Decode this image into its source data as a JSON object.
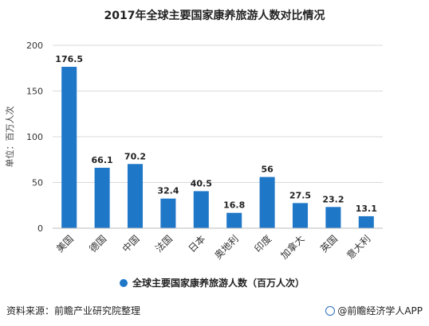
{
  "chart_data": {
    "type": "bar",
    "title": "2017年全球主要国家康养旅游人数对比情况",
    "ylabel": "单位：百万人次",
    "xlabel": "",
    "categories": [
      "美国",
      "德国",
      "中国",
      "法国",
      "日本",
      "奥地利",
      "印度",
      "加拿大",
      "英国",
      "意大利"
    ],
    "series": [
      {
        "name": "全球主要国家康养旅游人数（百万人次）",
        "values": [
          176.5,
          66.1,
          70.2,
          32.4,
          40.5,
          16.8,
          56,
          27.5,
          23.2,
          13.1
        ],
        "color": "#1f77c8"
      }
    ],
    "data_labels": [
      "176.5",
      "66.1",
      "70.2",
      "32.4",
      "40.5",
      "16.8",
      "56",
      "27.5",
      "23.2",
      "13.1"
    ],
    "yticks": [
      0,
      50,
      100,
      150,
      200
    ],
    "ylim": [
      0,
      200
    ],
    "grid": true,
    "legend_position": "bottom"
  },
  "footer": {
    "source": "资料来源：前瞻产业研究院整理",
    "brand": "@前瞻经济学人APP"
  }
}
